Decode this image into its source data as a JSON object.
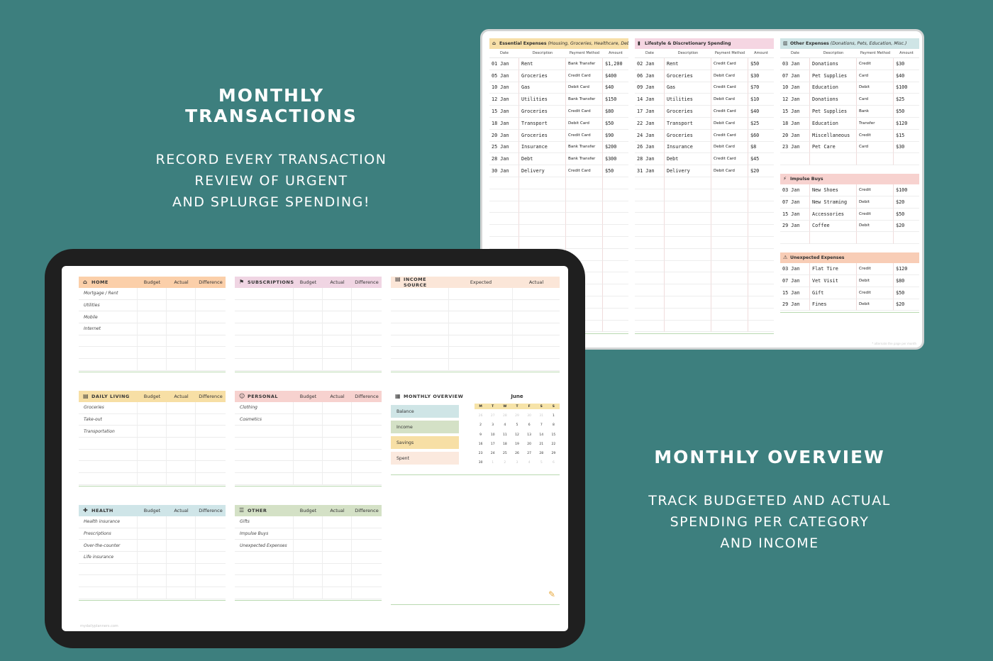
{
  "promo_transactions": {
    "heading": "MONTHLY TRANSACTIONS",
    "lines": [
      "RECORD EVERY TRANSACTION",
      "REVIEW OF URGENT",
      "AND SPLURGE SPENDING!"
    ]
  },
  "promo_overview": {
    "heading": "MONTHLY OVERVIEW",
    "lines": [
      "TRACK BUDGETED AND ACTUAL",
      "SPENDING PER CATEGORY",
      "AND INCOME"
    ]
  },
  "transactions": {
    "columns": [
      "Date",
      "Description",
      "Payment Method",
      "Amount"
    ],
    "essential": {
      "title": "Essential Expenses",
      "subtitle": "(Housing, Groceries, Healthcare, Debt)",
      "color": "#f7dfa8",
      "rows": [
        [
          "01 Jan",
          "Rent",
          "Bank Transfer",
          "$1,200"
        ],
        [
          "05 Jan",
          "Groceries",
          "Credit Card",
          "$400"
        ],
        [
          "10 Jan",
          "Gas",
          "Debit Card",
          "$40"
        ],
        [
          "12 Jan",
          "Utilities",
          "Bank Transfer",
          "$150"
        ],
        [
          "15 Jan",
          "Groceries",
          "Credit Card",
          "$80"
        ],
        [
          "18 Jan",
          "Transport",
          "Debit Card",
          "$50"
        ],
        [
          "20 Jan",
          "Groceries",
          "Credit Card",
          "$90"
        ],
        [
          "25 Jan",
          "Insurance",
          "Bank Transfer",
          "$200"
        ],
        [
          "28 Jan",
          "Debt",
          "Bank Transfer",
          "$300"
        ],
        [
          "30 Jan",
          "Delivery",
          "Credit Card",
          "$50"
        ]
      ]
    },
    "lifestyle": {
      "title": "Lifestyle & Discretionary Spending",
      "color": "#f5d6e2",
      "rows": [
        [
          "02 Jan",
          "Rent",
          "Credit Card",
          "$50"
        ],
        [
          "06 Jan",
          "Groceries",
          "Debit Card",
          "$30"
        ],
        [
          "09 Jan",
          "Gas",
          "Credit Card",
          "$70"
        ],
        [
          "14 Jan",
          "Utilities",
          "Debit Card",
          "$10"
        ],
        [
          "17 Jan",
          "Groceries",
          "Credit Card",
          "$40"
        ],
        [
          "22 Jan",
          "Transport",
          "Debit Card",
          "$25"
        ],
        [
          "24 Jan",
          "Groceries",
          "Credit Card",
          "$60"
        ],
        [
          "26 Jan",
          "Insurance",
          "Debit Card",
          "$8"
        ],
        [
          "28 Jan",
          "Debt",
          "Credit Card",
          "$45"
        ],
        [
          "31 Jan",
          "Delivery",
          "Debit Card",
          "$20"
        ]
      ]
    },
    "other": {
      "title": "Other Expenses",
      "subtitle": "(Donations, Pets, Education, Misc.)",
      "color": "#cfe5e6",
      "rows": [
        [
          "03 Jan",
          "Donations",
          "Credit",
          "$30"
        ],
        [
          "07 Jan",
          "Pet Supplies",
          "Card",
          "$40"
        ],
        [
          "10 Jan",
          "Education",
          "Debit",
          "$100"
        ],
        [
          "12 Jan",
          "Donations",
          "Card",
          "$25"
        ],
        [
          "15 Jan",
          "Pet Supplies",
          "Bank",
          "$50"
        ],
        [
          "18 Jan",
          "Education",
          "Transfer",
          "$120"
        ],
        [
          "20 Jan",
          "Miscellaneous",
          "Credit",
          "$15"
        ],
        [
          "23 Jan",
          "Pet Care",
          "Card",
          "$30"
        ]
      ]
    },
    "impulse": {
      "title": "Impulse Buys",
      "color": "#f7d2cf",
      "rows": [
        [
          "03 Jan",
          "New Shoes",
          "Credit",
          "$100"
        ],
        [
          "07 Jan",
          "New Straming",
          "Debit",
          "$20"
        ],
        [
          "15 Jan",
          "Accessories",
          "Credit",
          "$50"
        ],
        [
          "29 Jan",
          "Coffee",
          "Debit",
          "$20"
        ]
      ]
    },
    "unexpected": {
      "title": "Unexpected Expenses",
      "color": "#f8cdb6",
      "rows": [
        [
          "03 Jan",
          "Flat Tire",
          "Credit",
          "$120"
        ],
        [
          "07 Jan",
          "Vet Visit",
          "Debit",
          "$80"
        ],
        [
          "15 Jan",
          "Gift",
          "Credit",
          "$50"
        ],
        [
          "29 Jan",
          "Fines",
          "Debit",
          "$20"
        ]
      ]
    }
  },
  "overview": {
    "budget_cols": [
      "Budget",
      "Actual",
      "Difference"
    ],
    "categories": [
      {
        "key": "home",
        "name": "HOME",
        "icon": "house-icon",
        "color": "#fbcfa9",
        "items": [
          "Mortgage / Rent",
          "Utilities",
          "Mobile",
          "Internet"
        ]
      },
      {
        "key": "subscriptions",
        "name": "SUBSCRIPTIONS",
        "icon": "flag-icon",
        "color": "#f0d5e3",
        "items": []
      },
      {
        "key": "daily-living",
        "name": "DAILY LIVING",
        "icon": "cart-icon",
        "color": "#f7dfa5",
        "items": [
          "Groceries",
          "Take-out",
          "Transportation"
        ]
      },
      {
        "key": "personal",
        "name": "PERSONAL",
        "icon": "person-icon",
        "color": "#f7d2cf",
        "items": [
          "Clothing",
          "Cosmetics"
        ]
      },
      {
        "key": "health",
        "name": "HEALTH",
        "icon": "pill-icon",
        "color": "#cfe5e8",
        "items": [
          "Health insurance",
          "Prescriptions",
          "Over-the-counter",
          "Life insurance"
        ]
      },
      {
        "key": "other",
        "name": "OTHER",
        "icon": "list-icon",
        "color": "#d4e1c6",
        "items": [
          "Gifts",
          "Impulse Buys",
          "Unexpected Expenses"
        ]
      }
    ],
    "income": {
      "name": "INCOME SOURCE",
      "cols": [
        "Expected",
        "Actual"
      ],
      "color": "#fbe6d8"
    },
    "monthly": {
      "title": "MONTHLY OVERVIEW",
      "items": [
        {
          "label": "Balance",
          "color": "#cfe5e6"
        },
        {
          "label": "Income",
          "color": "#d4e1c6"
        },
        {
          "label": "Savings",
          "color": "#f7dfa5"
        },
        {
          "label": "Spent",
          "color": "#fbe9de"
        }
      ],
      "calendar": {
        "month": "June",
        "dow": [
          "M",
          "T",
          "W",
          "T",
          "F",
          "S",
          "S"
        ],
        "days": [
          [
            "26",
            "27",
            "28",
            "29",
            "30",
            "31",
            "1"
          ],
          [
            "2",
            "3",
            "4",
            "5",
            "6",
            "7",
            "8"
          ],
          [
            "9",
            "10",
            "11",
            "12",
            "13",
            "14",
            "15"
          ],
          [
            "16",
            "17",
            "18",
            "19",
            "20",
            "21",
            "22"
          ],
          [
            "23",
            "24",
            "25",
            "26",
            "27",
            "28",
            "29"
          ],
          [
            "30",
            "1",
            "2",
            "3",
            "4",
            "5",
            "6"
          ]
        ]
      }
    },
    "url": "mydailyplanners.com"
  }
}
